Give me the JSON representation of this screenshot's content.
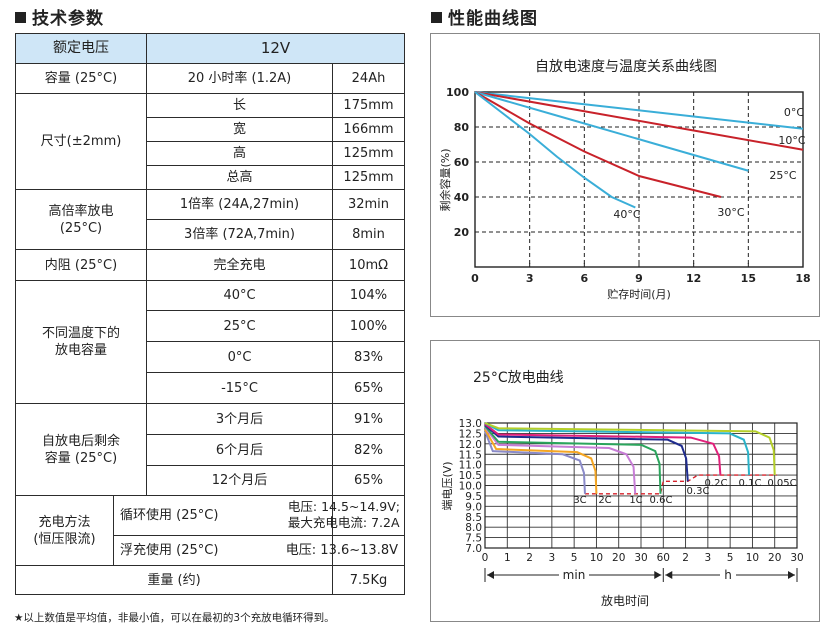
{
  "specs": {
    "heading": "技术参数",
    "rated_voltage_label": "额定电压",
    "rated_voltage_value": "12V",
    "capacity": {
      "label": "容量 (25°C)",
      "rate": "20 小时率 (1.2A)",
      "value": "24Ah"
    },
    "dimensions": {
      "label": "尺寸(±2mm)",
      "rows": [
        {
          "name": "长",
          "value": "175mm"
        },
        {
          "name": "宽",
          "value": "166mm"
        },
        {
          "name": "高",
          "value": "125mm"
        },
        {
          "name": "总高",
          "value": "125mm"
        }
      ]
    },
    "high_rate": {
      "label_line1": "高倍率放电",
      "label_line2": "(25°C)",
      "rows": [
        {
          "name": "1倍率 (24A,27min)",
          "value": "32min"
        },
        {
          "name": "3倍率 (72A,7min)",
          "value": "8min"
        }
      ]
    },
    "internal_resistance": {
      "label": "内阻 (25°C)",
      "condition": "完全充电",
      "value": "10mΩ"
    },
    "temp_capacity": {
      "label_line1": "不同温度下的",
      "label_line2": "放电容量",
      "rows": [
        {
          "name": "40°C",
          "value": "104%"
        },
        {
          "name": "25°C",
          "value": "100%"
        },
        {
          "name": "0°C",
          "value": "83%"
        },
        {
          "name": "-15°C",
          "value": "65%"
        }
      ]
    },
    "self_discharge": {
      "label_line1": "自放电后剩余",
      "label_line2": "容量 (25°C)",
      "rows": [
        {
          "name": "3个月后",
          "value": "91%"
        },
        {
          "name": "6个月后",
          "value": "82%"
        },
        {
          "name": "12个月后",
          "value": "65%"
        }
      ]
    },
    "charge": {
      "label_line1": "充电方法",
      "label_line2": "(恒压限流)",
      "cycle_label": "循环使用 (25°C)",
      "cycle_value_line1": "电压: 14.5~14.9V;",
      "cycle_value_line2": "最大充电电流: 7.2A",
      "float_label": "浮充使用 (25°C)",
      "float_value": "电压: 13.6~13.8V"
    },
    "weight": {
      "label": "重量 (约)",
      "value": "7.5Kg"
    },
    "footnote": "★以上数值是平均值，非最小值，可以在最初的3个充放电循环得到。"
  },
  "charts_heading": "性能曲线图",
  "chart_data": [
    {
      "type": "line",
      "title": "自放电速度与温度关系曲线图",
      "xlabel": "贮存时间(月)",
      "ylabel": "剩余容量(%)",
      "xlim": [
        0,
        18
      ],
      "ylim": [
        0,
        100
      ],
      "xticks": [
        "0",
        "3",
        "6",
        "9",
        "12",
        "15",
        "18"
      ],
      "yticks": [
        "20",
        "40",
        "60",
        "80",
        "100"
      ],
      "grid": "dashed",
      "series": [
        {
          "name": "0°C",
          "color": "#3aaed8",
          "x": [
            0,
            6,
            12,
            18
          ],
          "y": [
            100,
            93,
            86,
            79
          ]
        },
        {
          "name": "10°C",
          "color": "#c8222a",
          "x": [
            0,
            6,
            12,
            18
          ],
          "y": [
            100,
            89,
            78,
            67
          ]
        },
        {
          "name": "25°C",
          "color": "#3aaed8",
          "x": [
            0,
            5,
            10,
            15
          ],
          "y": [
            100,
            85,
            70,
            55
          ]
        },
        {
          "name": "30°C",
          "color": "#c8222a",
          "x": [
            0,
            3,
            6,
            9,
            13.5
          ],
          "y": [
            100,
            82,
            66,
            52,
            40
          ]
        },
        {
          "name": "40°C",
          "color": "#3aaed8",
          "x": [
            0,
            1.5,
            3,
            4.5,
            6,
            7.5,
            8.8
          ],
          "y": [
            100,
            88,
            76,
            63,
            51,
            40,
            34
          ]
        }
      ]
    },
    {
      "type": "line",
      "title": "25°C放电曲线",
      "xlabel": "放电时间",
      "ylabel": "端电压(V)",
      "ylim": [
        7.0,
        13.0
      ],
      "yticks": [
        "7.0",
        "7.5",
        "8.0",
        "8.5",
        "9.0",
        "9.5",
        "10.0",
        "10.5",
        "11.0",
        "11.5",
        "12.0",
        "12.5",
        "13.0"
      ],
      "xticks": [
        "0",
        "1",
        "2",
        "3",
        "5",
        "10",
        "20",
        "30",
        "60",
        "2",
        "3",
        "5",
        "10",
        "20",
        "30"
      ],
      "x_unit_min": "min",
      "x_unit_h": "h",
      "cutoff_voltages": [
        9.6,
        10.2,
        10.5
      ],
      "series": [
        {
          "name": "3C",
          "color": "#8a8ac8",
          "start_v": 12.6,
          "plateau_v": 11.5,
          "end_min": 7,
          "cutoff_v": 9.6
        },
        {
          "name": "2C",
          "color": "#f5a623",
          "start_v": 12.7,
          "plateau_v": 11.6,
          "end_min": 10,
          "cutoff_v": 9.6
        },
        {
          "name": "1C",
          "color": "#c77dd6",
          "start_v": 12.8,
          "plateau_v": 11.8,
          "end_min": 27,
          "cutoff_v": 9.6
        },
        {
          "name": "0.6C",
          "color": "#2aa55c",
          "start_v": 12.85,
          "plateau_v": 11.95,
          "end_min": 55,
          "cutoff_v": 9.6
        },
        {
          "name": "0.3C",
          "color": "#1f2c8e",
          "start_v": 12.9,
          "plateau_v": 12.2,
          "end_min": 125,
          "cutoff_v": 10.2
        },
        {
          "name": "0.2C",
          "color": "#e0207a",
          "start_v": 12.95,
          "plateau_v": 12.3,
          "end_min": 240,
          "cutoff_v": 10.5
        },
        {
          "name": "0.1C",
          "color": "#2ab3c9",
          "start_v": 13.0,
          "plateau_v": 12.5,
          "end_min": 540,
          "cutoff_v": 10.5
        },
        {
          "name": "0.05C",
          "color": "#b5cf2a",
          "start_v": 13.0,
          "plateau_v": 12.6,
          "end_min": 1200,
          "cutoff_v": 10.5
        }
      ]
    }
  ]
}
